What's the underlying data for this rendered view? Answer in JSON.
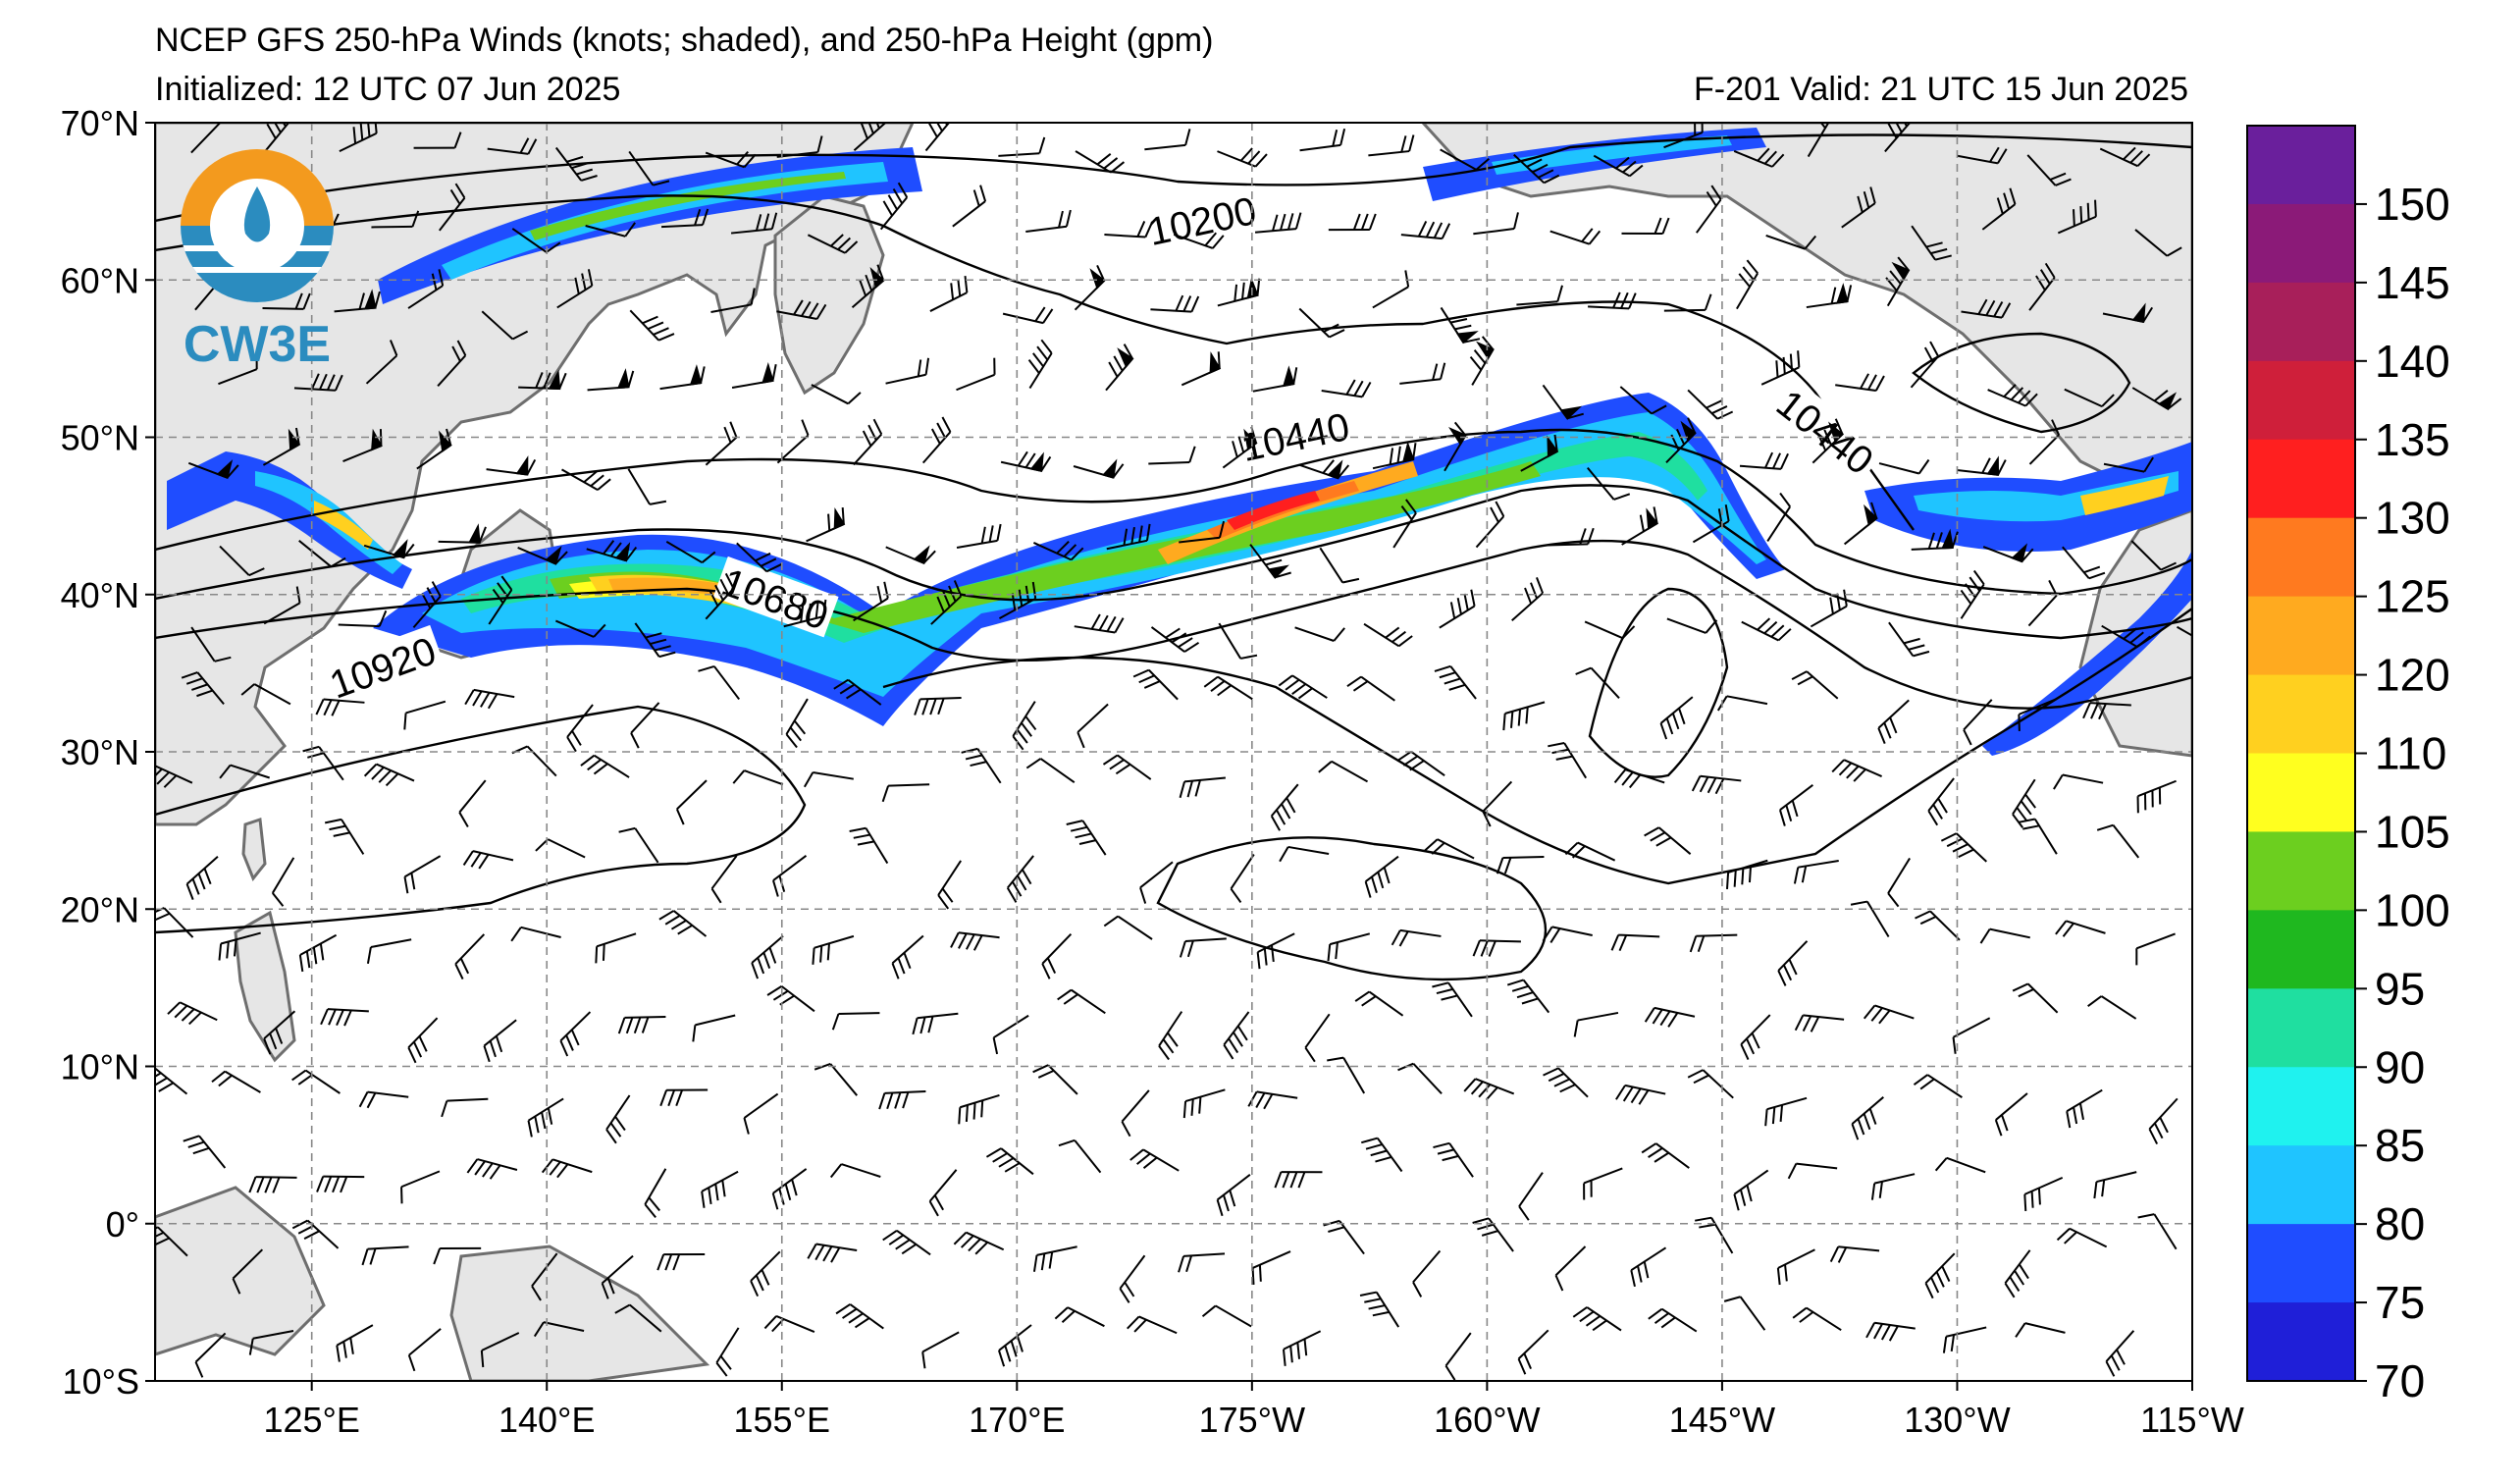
{
  "header": {
    "title": "NCEP GFS 250-hPa Winds (knots; shaded), and 250-hPa Height (gpm)",
    "initialized": "Initialized: 12 UTC 07 Jun 2025",
    "valid": "F-201  Valid: 21 UTC 15 Jun 2025"
  },
  "logo": {
    "text": "CW3E",
    "colors": {
      "orange": "#f39a1e",
      "blue": "#2b8cbf"
    }
  },
  "map": {
    "lat_labels": [
      "70°N",
      "60°N",
      "50°N",
      "40°N",
      "30°N",
      "20°N",
      "10°N",
      "0°",
      "10°S"
    ],
    "lon_labels": [
      "125°E",
      "140°E",
      "155°E",
      "170°E",
      "175°W",
      "160°W",
      "145°W",
      "130°W",
      "115°W"
    ],
    "lat_range": [
      -10,
      70
    ],
    "lon_range": [
      "115°E",
      "115°W"
    ],
    "land_color": "#e6e6e6",
    "coast_color": "#6e6e6e",
    "grid": "dashed"
  },
  "height_contours": [
    {
      "label": "10200",
      "value": 10200
    },
    {
      "label": "10440",
      "value": 10440
    },
    {
      "label": "10440",
      "value": 10440
    },
    {
      "label": "10680",
      "value": 10680
    },
    {
      "label": "10920",
      "value": 10920
    }
  ],
  "colorbar": {
    "labels": [
      "150",
      "145",
      "140",
      "135",
      "130",
      "125",
      "120",
      "110",
      "105",
      "100",
      "95",
      "90",
      "85",
      "80",
      "75",
      "70"
    ],
    "colors": [
      "#6a1f9c",
      "#8b1a78",
      "#a81f5a",
      "#cf1f3a",
      "#ff1f1f",
      "#ff7a1f",
      "#ffaa1f",
      "#ffd01f",
      "#ffff1f",
      "#6ccf1f",
      "#1fb81f",
      "#1fdfa0",
      "#1ff2ef",
      "#1fc4ff",
      "#1f4dff",
      "#1f1fd8"
    ]
  }
}
